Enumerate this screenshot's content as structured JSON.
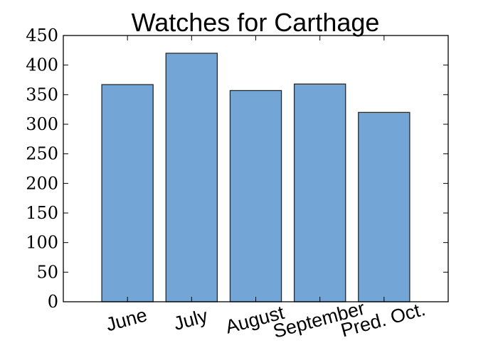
{
  "chart_data": {
    "type": "bar",
    "title": "Watches for Carthage",
    "xlabel": "",
    "ylabel": "",
    "categories": [
      "June",
      "July",
      "August",
      "September",
      "Pred. Oct."
    ],
    "values": [
      367,
      420,
      357,
      368,
      320
    ],
    "ylim": [
      0,
      450
    ],
    "yticks": [
      0,
      50,
      100,
      150,
      200,
      250,
      300,
      350,
      400,
      450
    ],
    "xtick_rotation": -15,
    "bar_color": "#73a6d6",
    "bar_edge_color": "#1f2a33",
    "grid": false,
    "legend": "none"
  }
}
